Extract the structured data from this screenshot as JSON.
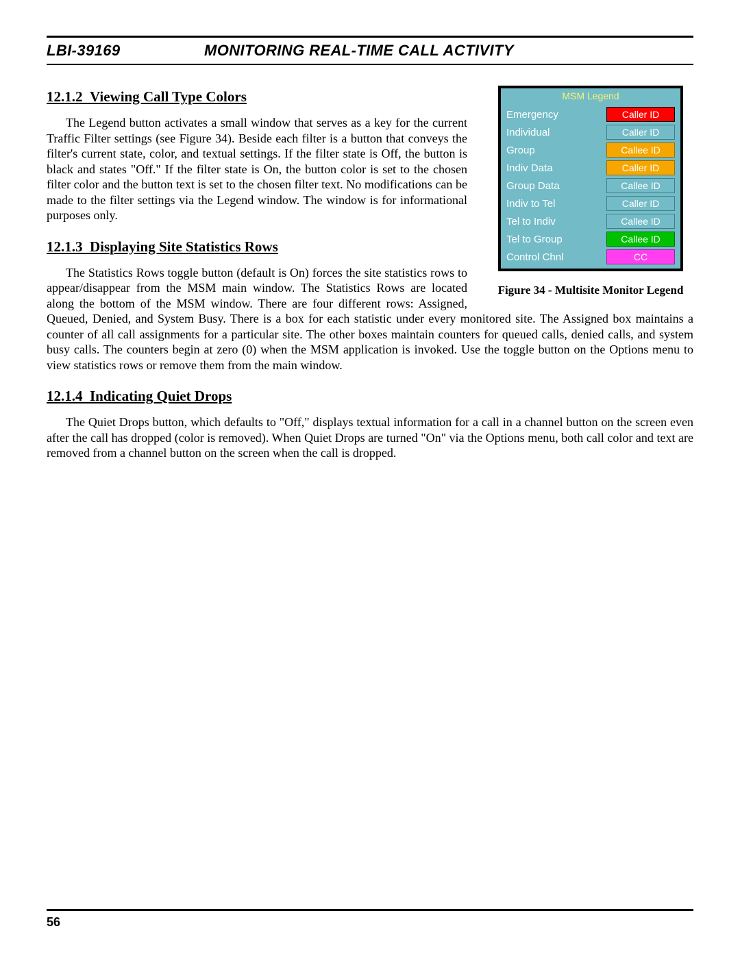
{
  "header": {
    "doc_id": "LBI-39169",
    "title": "MONITORING REAL-TIME CALL ACTIVITY"
  },
  "sections": [
    {
      "number": "12.1.2",
      "title": "Viewing Call Type Colors",
      "body": "The Legend button activates a small window that serves as a key for the current Traffic Filter settings (see Figure 34).  Beside each filter is a button that conveys the filter's current state, color, and textual settings.  If the filter state is Off, the button is black and states \"Off.\"  If the filter state is On, the button color is set to the chosen filter color and the button text is set to the chosen filter text.  No modifications can be made to the filter settings via the Legend window.  The window is for informational purposes only."
    },
    {
      "number": "12.1.3",
      "title": "Displaying Site Statistics Rows",
      "body": "The Statistics Rows toggle button (default is On) forces the site statistics rows to appear/disappear from the MSM main window.  The Statistics Rows are located along the bottom of the MSM window.  There are four different rows:  Assigned, Queued, Denied, and System Busy.  There is a box for each statistic under every monitored site.  The Assigned box maintains a counter of all call assignments for a particular site.  The other boxes maintain counters for queued calls, denied calls, and system busy calls.  The counters begin at zero (0) when the MSM application is invoked.  Use the toggle button on the Options menu to view statistics rows or remove them from the main window."
    },
    {
      "number": "12.1.4",
      "title": "Indicating Quiet Drops",
      "body": "The Quiet Drops button, which defaults to \"Off,\" displays textual information for a call in a channel button on the screen even after the call has dropped (color is removed).  When Quiet Drops are turned \"On\" via the Options menu, both call color and text are removed from a channel button on the screen when the call is dropped."
    }
  ],
  "figure": {
    "caption": "Figure 34 - Multisite Monitor Legend",
    "title": "MSM Legend",
    "panel_bg": "#73bcc7",
    "title_color": "#fcf36f",
    "label_color": "#ffffff",
    "rows": [
      {
        "label": "Emergency",
        "text": "Caller ID",
        "bg": "#ff0000",
        "fg": "#ffffff",
        "border": "#000000"
      },
      {
        "label": "Individual",
        "text": "Caller ID",
        "bg": "#73bcc7",
        "fg": "#ffffff",
        "border": "#3e7e87"
      },
      {
        "label": "Group",
        "text": "Callee ID",
        "bg": "#f7a600",
        "fg": "#ffffff",
        "border": "#9c6a00"
      },
      {
        "label": "Indiv Data",
        "text": "Caller ID",
        "bg": "#f7a600",
        "fg": "#ffffff",
        "border": "#9c6a00"
      },
      {
        "label": "Group Data",
        "text": "Callee ID",
        "bg": "#73bcc7",
        "fg": "#ffffff",
        "border": "#3e7e87"
      },
      {
        "label": "Indiv to Tel",
        "text": "Caller ID",
        "bg": "#73bcc7",
        "fg": "#ffffff",
        "border": "#3e7e87"
      },
      {
        "label": "Tel to Indiv",
        "text": "Callee ID",
        "bg": "#73bcc7",
        "fg": "#ffffff",
        "border": "#3e7e87"
      },
      {
        "label": "Tel to Group",
        "text": "Callee ID",
        "bg": "#00c000",
        "fg": "#ffffff",
        "border": "#007000"
      },
      {
        "label": "Control Chnl",
        "text": "CC",
        "bg": "#ff3ef0",
        "fg": "#ffffff",
        "border": "#a021a0"
      }
    ]
  },
  "footer": {
    "page": "56"
  }
}
